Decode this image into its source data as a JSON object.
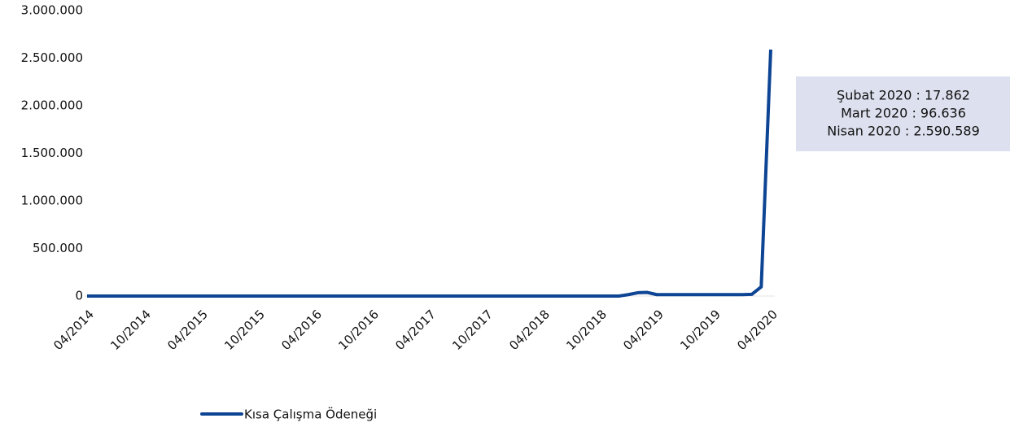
{
  "chart_data": {
    "type": "line",
    "categories": [
      "04/2014",
      null,
      null,
      null,
      null,
      null,
      "10/2014",
      null,
      null,
      null,
      null,
      null,
      "04/2015",
      null,
      null,
      null,
      null,
      null,
      "10/2015",
      null,
      null,
      null,
      null,
      null,
      "04/2016",
      null,
      null,
      null,
      null,
      null,
      "10/2016",
      null,
      null,
      null,
      null,
      null,
      "04/2017",
      null,
      null,
      null,
      null,
      null,
      "10/2017",
      null,
      null,
      null,
      null,
      null,
      "04/2018",
      null,
      null,
      null,
      null,
      null,
      "10/2018",
      null,
      null,
      null,
      null,
      null,
      "04/2019",
      null,
      null,
      null,
      null,
      null,
      "10/2019",
      null,
      null,
      null,
      null,
      null,
      "04/2020"
    ],
    "series": [
      {
        "name": "Kısa Çalışma Ödeneği",
        "color": "#0d4493",
        "values": [
          0,
          0,
          0,
          0,
          0,
          0,
          0,
          0,
          0,
          0,
          0,
          0,
          0,
          0,
          0,
          0,
          0,
          0,
          0,
          0,
          0,
          0,
          0,
          0,
          0,
          0,
          0,
          0,
          0,
          0,
          0,
          0,
          0,
          0,
          0,
          0,
          0,
          0,
          0,
          0,
          0,
          0,
          0,
          0,
          0,
          0,
          0,
          0,
          0,
          0,
          0,
          0,
          0,
          0,
          0,
          0,
          0,
          15000,
          35000,
          38000,
          15000,
          15000,
          15000,
          15000,
          15000,
          15000,
          15000,
          15000,
          15000,
          15000,
          17862,
          96636,
          2590589
        ]
      }
    ],
    "ylim": [
      0,
      3000000
    ],
    "yticks": [
      0,
      {
        "value": 500000,
        "label": "500.000"
      },
      {
        "value": 1000000,
        "label": "1.000.000"
      },
      {
        "value": 1500000,
        "label": "1.500.000"
      },
      {
        "value": 2000000,
        "label": "2.000.000"
      },
      {
        "value": 2500000,
        "label": "2.500.000"
      },
      {
        "value": 3000000,
        "label": "3.000.000"
      }
    ],
    "annotations": [
      "Şubat 2020 : 17.862",
      "Mart 2020 : 96.636",
      "Nisan 2020 : 2.590.589"
    ],
    "grid": false
  }
}
